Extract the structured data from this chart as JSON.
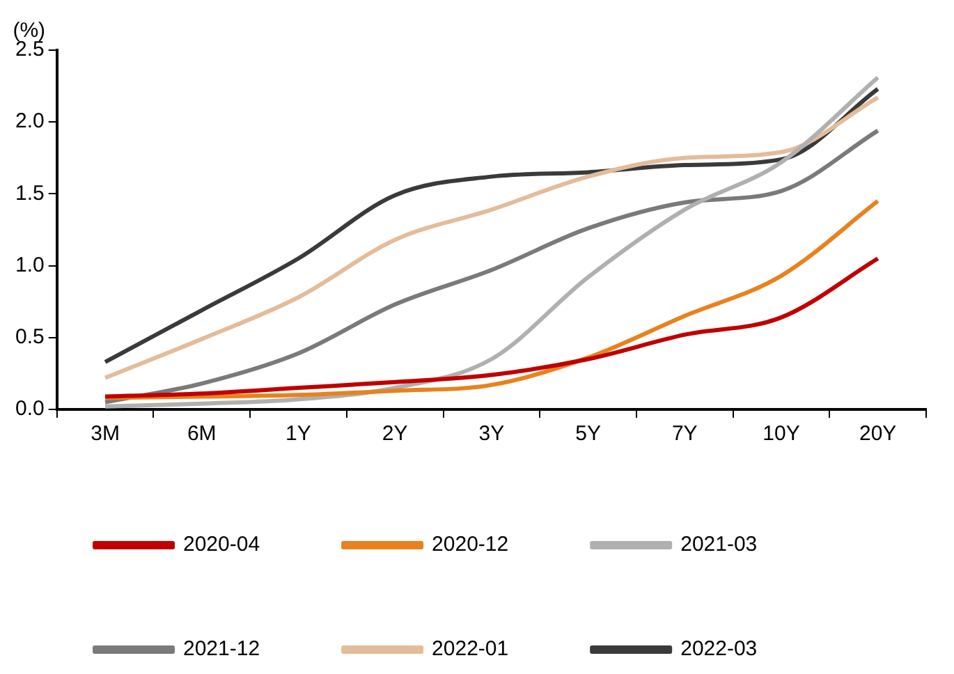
{
  "chart_data": {
    "type": "line",
    "ylabel": "(%)",
    "categories": [
      "3M",
      "6M",
      "1Y",
      "2Y",
      "3Y",
      "5Y",
      "7Y",
      "10Y",
      "20Y"
    ],
    "ylim": [
      0,
      2.5
    ],
    "yticks": [
      {
        "value": 0,
        "label": "0.0"
      },
      {
        "value": 0.5,
        "label": "0.5"
      },
      {
        "value": 1,
        "label": "1.0"
      },
      {
        "value": 1.5,
        "label": "1.5"
      },
      {
        "value": 2,
        "label": "2.0"
      },
      {
        "value": 2.5,
        "label": "2.5"
      }
    ],
    "grid": false,
    "legend": "bottom",
    "marker": "none",
    "line_style": "solid",
    "series": [
      {
        "name": "2020-04",
        "color": "#c00000",
        "values": [
          0.09,
          0.11,
          0.15,
          0.19,
          0.24,
          0.35,
          0.52,
          0.64,
          1.05
        ]
      },
      {
        "name": "2020-12",
        "color": "#e8821e",
        "values": [
          0.08,
          0.09,
          0.1,
          0.13,
          0.17,
          0.36,
          0.65,
          0.93,
          1.45
        ]
      },
      {
        "name": "2021-03",
        "color": "#b0b0b0",
        "values": [
          0.02,
          0.04,
          0.07,
          0.15,
          0.35,
          0.92,
          1.39,
          1.72,
          2.31
        ]
      },
      {
        "name": "2021-12",
        "color": "#7a7a7a",
        "values": [
          0.05,
          0.18,
          0.39,
          0.73,
          0.97,
          1.26,
          1.44,
          1.52,
          1.94
        ]
      },
      {
        "name": "2022-01",
        "color": "#e3bc9a",
        "values": [
          0.22,
          0.49,
          0.78,
          1.18,
          1.39,
          1.62,
          1.75,
          1.79,
          2.17
        ]
      },
      {
        "name": "2022-03",
        "color": "#3a3a3a",
        "values": [
          0.33,
          0.69,
          1.05,
          1.49,
          1.62,
          1.65,
          1.7,
          1.74,
          2.23
        ]
      }
    ]
  }
}
